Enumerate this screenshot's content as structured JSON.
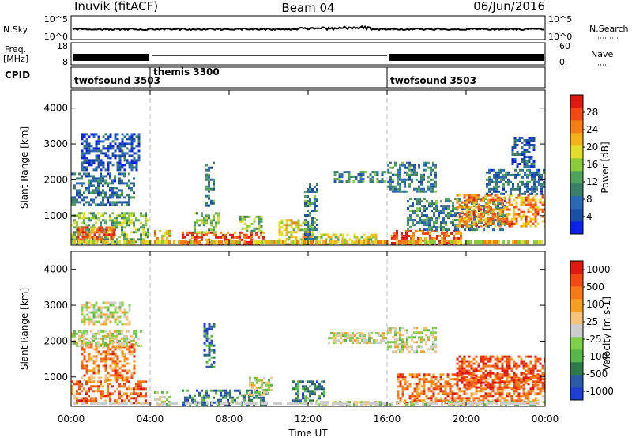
{
  "header": {
    "title_left": "Inuvik (fitACF)",
    "title_center": "Beam 04",
    "title_right": "06/Jun/2016"
  },
  "aux_panels": {
    "nsky": {
      "left_label": "N.Sky",
      "right_label": "N.Search",
      "left_ticks": [
        "10^5",
        "10^0"
      ],
      "right_ticks": [
        "10^5",
        "10^0"
      ]
    },
    "freq": {
      "left_label_1": "Freq.",
      "left_label_2": "[MHz]",
      "right_label": "Nave",
      "left_ticks": [
        "18",
        "8"
      ],
      "right_ticks": [
        "60",
        "0"
      ]
    },
    "cpid": {
      "label": "CPID",
      "segments": [
        {
          "name": "twofsound 3503",
          "start_hour": 0.0,
          "end_hour": 4.0
        },
        {
          "name": "themis 3300",
          "start_hour": 4.0,
          "end_hour": 16.0
        },
        {
          "name": "twofsound 3503",
          "start_hour": 16.0,
          "end_hour": 24.0
        }
      ]
    }
  },
  "chart_data": [
    {
      "type": "heatmap",
      "panel": "power",
      "ylabel": "Slant Range [km]",
      "xlabel": "",
      "x_ticks": [
        "00:00",
        "04:00",
        "08:00",
        "12:00",
        "16:00",
        "20:00",
        "00:00"
      ],
      "xlim_hours": [
        0,
        24
      ],
      "ylim_km": [
        180,
        4500
      ],
      "y_ticks": [
        1000,
        2000,
        3000,
        4000
      ],
      "colorbar": {
        "label": "Power [dB]",
        "tick_labels": [
          "4",
          "8",
          "12",
          "16",
          "20",
          "24",
          "28"
        ],
        "colors": [
          "#0a22e6",
          "#1a4fa6",
          "#2a6ab8",
          "#3b7e6a",
          "#4fa35a",
          "#8ccc3c",
          "#e4dc2a",
          "#f4b21a",
          "#f77e12",
          "#f24a12",
          "#e01a12"
        ]
      },
      "regions": [
        {
          "t0": 0.0,
          "t1": 3.9,
          "r0": 200,
          "r1": 1100,
          "level": 0.45
        },
        {
          "t0": 0.3,
          "t1": 2.2,
          "r0": 250,
          "r1": 700,
          "level": 0.85
        },
        {
          "t0": 0.0,
          "t1": 3.2,
          "r0": 1300,
          "r1": 2200,
          "level": 0.25
        },
        {
          "t0": 0.5,
          "t1": 3.5,
          "r0": 2300,
          "r1": 3300,
          "level": 0.15
        },
        {
          "t0": 4.2,
          "t1": 5.0,
          "r0": 250,
          "r1": 600,
          "level": 0.7
        },
        {
          "t0": 5.6,
          "t1": 9.8,
          "r0": 220,
          "r1": 560,
          "level": 0.85
        },
        {
          "t0": 6.2,
          "t1": 7.5,
          "r0": 550,
          "r1": 1100,
          "level": 0.45
        },
        {
          "t0": 6.8,
          "t1": 7.2,
          "r0": 1300,
          "r1": 2500,
          "level": 0.3
        },
        {
          "t0": 8.5,
          "t1": 9.6,
          "r0": 600,
          "r1": 1000,
          "level": 0.45
        },
        {
          "t0": 10.5,
          "t1": 12.2,
          "r0": 200,
          "r1": 900,
          "level": 0.6
        },
        {
          "t0": 11.8,
          "t1": 12.5,
          "r0": 300,
          "r1": 1900,
          "level": 0.3
        },
        {
          "t0": 13.3,
          "t1": 15.9,
          "r0": 1950,
          "r1": 2250,
          "level": 0.3
        },
        {
          "t0": 12.5,
          "t1": 15.5,
          "r0": 200,
          "r1": 500,
          "level": 0.55
        },
        {
          "t0": 16.0,
          "t1": 18.5,
          "r0": 1700,
          "r1": 2500,
          "level": 0.3
        },
        {
          "t0": 16.2,
          "t1": 19.8,
          "r0": 200,
          "r1": 600,
          "level": 0.85
        },
        {
          "t0": 17.0,
          "t1": 22.0,
          "r0": 600,
          "r1": 1500,
          "level": 0.3
        },
        {
          "t0": 19.5,
          "t1": 24.0,
          "r0": 700,
          "r1": 1600,
          "level": 0.75
        },
        {
          "t0": 21.0,
          "t1": 24.0,
          "r0": 1600,
          "r1": 2300,
          "level": 0.25
        },
        {
          "t0": 22.3,
          "t1": 23.4,
          "r0": 2400,
          "r1": 3200,
          "level": 0.2
        }
      ]
    },
    {
      "type": "heatmap",
      "panel": "velocity",
      "ylabel": "Slant Range [km]",
      "xlabel": "Time UT",
      "x_ticks": [
        "00:00",
        "04:00",
        "08:00",
        "12:00",
        "16:00",
        "20:00",
        "00:00"
      ],
      "xlim_hours": [
        0,
        24
      ],
      "ylim_km": [
        180,
        4500
      ],
      "y_ticks": [
        1000,
        2000,
        3000,
        4000
      ],
      "colorbar": {
        "label": "Velocity [m s-1]",
        "tick_labels": [
          "1000",
          "500",
          "100",
          "25",
          "-25",
          "-100",
          "-500",
          "-1000"
        ],
        "colors": [
          "#1f3fd0",
          "#2a5aa8",
          "#2e7a4a",
          "#58b848",
          "#7fd248",
          "#cccccc",
          "#f7c27a",
          "#f5a020",
          "#f77a12",
          "#f24a12",
          "#e01a12"
        ]
      },
      "regions": [
        {
          "t0": 0.0,
          "t1": 3.8,
          "r0": 300,
          "r1": 900,
          "level": 0.8
        },
        {
          "t0": 0.5,
          "t1": 3.2,
          "r0": 900,
          "r1": 2000,
          "level": 0.75
        },
        {
          "t0": 0.0,
          "t1": 3.5,
          "r0": 1900,
          "r1": 2300,
          "level": 0.5
        },
        {
          "t0": 0.5,
          "t1": 3.0,
          "r0": 2500,
          "r1": 3100,
          "level": 0.5
        },
        {
          "t0": 4.2,
          "t1": 5.0,
          "r0": 250,
          "r1": 600,
          "level": 0.5
        },
        {
          "t0": 5.6,
          "t1": 10.0,
          "r0": 250,
          "r1": 650,
          "level": 0.2
        },
        {
          "t0": 6.7,
          "t1": 7.2,
          "r0": 1300,
          "r1": 2500,
          "level": 0.2
        },
        {
          "t0": 9.0,
          "t1": 10.2,
          "r0": 500,
          "r1": 1000,
          "level": 0.5
        },
        {
          "t0": 11.2,
          "t1": 12.8,
          "r0": 300,
          "r1": 900,
          "level": 0.2
        },
        {
          "t0": 13.0,
          "t1": 16.0,
          "r0": 1950,
          "r1": 2250,
          "level": 0.5
        },
        {
          "t0": 16.0,
          "t1": 18.5,
          "r0": 1700,
          "r1": 2400,
          "level": 0.5
        },
        {
          "t0": 16.5,
          "t1": 24.0,
          "r0": 300,
          "r1": 1100,
          "level": 0.78
        },
        {
          "t0": 19.5,
          "t1": 24.0,
          "r0": 700,
          "r1": 1600,
          "level": 0.88
        },
        {
          "t0": 12.0,
          "t1": 24.0,
          "r0": 200,
          "r1": 330,
          "level": 0.45
        }
      ]
    }
  ]
}
